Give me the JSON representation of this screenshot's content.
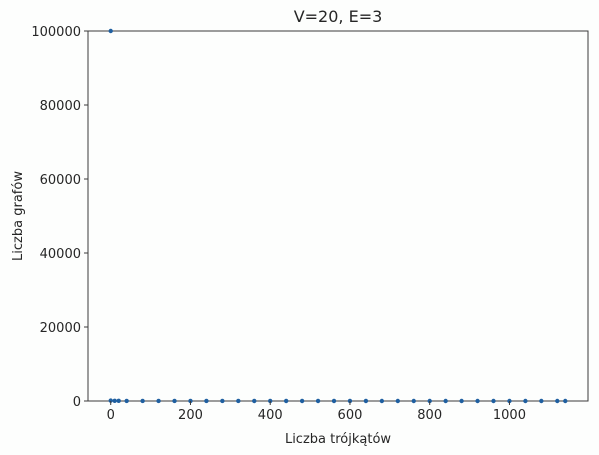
{
  "chart_data": {
    "type": "scatter",
    "title": "V=20, E=3",
    "xlabel": "Liczba trójkątów",
    "ylabel": "Liczba grafów",
    "xlim": [
      -57,
      1197
    ],
    "ylim": [
      0,
      100000
    ],
    "xticks": [
      0,
      200,
      400,
      600,
      800,
      1000
    ],
    "yticks": [
      0,
      20000,
      40000,
      60000,
      80000,
      100000
    ],
    "xtick_labels": [
      "0",
      "200",
      "400",
      "600",
      "800",
      "1000"
    ],
    "ytick_labels": [
      "0",
      "20000",
      "40000",
      "60000",
      "80000",
      "100000"
    ],
    "grid": false,
    "series": [
      {
        "color": "#1f5fa0",
        "points": [
          {
            "x": 0,
            "y": 100000
          },
          {
            "x": 0,
            "y": 100
          },
          {
            "x": 10,
            "y": 60
          },
          {
            "x": 20,
            "y": 40
          },
          {
            "x": 40,
            "y": 25
          },
          {
            "x": 80,
            "y": 15
          },
          {
            "x": 120,
            "y": 10
          },
          {
            "x": 160,
            "y": 8
          },
          {
            "x": 200,
            "y": 6
          },
          {
            "x": 240,
            "y": 5
          },
          {
            "x": 280,
            "y": 4
          },
          {
            "x": 320,
            "y": 4
          },
          {
            "x": 360,
            "y": 3
          },
          {
            "x": 400,
            "y": 3
          },
          {
            "x": 440,
            "y": 3
          },
          {
            "x": 480,
            "y": 2
          },
          {
            "x": 520,
            "y": 2
          },
          {
            "x": 560,
            "y": 2
          },
          {
            "x": 600,
            "y": 2
          },
          {
            "x": 640,
            "y": 2
          },
          {
            "x": 680,
            "y": 1
          },
          {
            "x": 720,
            "y": 1
          },
          {
            "x": 760,
            "y": 1
          },
          {
            "x": 800,
            "y": 1
          },
          {
            "x": 840,
            "y": 1
          },
          {
            "x": 880,
            "y": 1
          },
          {
            "x": 920,
            "y": 1
          },
          {
            "x": 960,
            "y": 1
          },
          {
            "x": 1000,
            "y": 1
          },
          {
            "x": 1040,
            "y": 1
          },
          {
            "x": 1080,
            "y": 1
          },
          {
            "x": 1120,
            "y": 1
          },
          {
            "x": 1140,
            "y": 1
          }
        ]
      }
    ]
  }
}
